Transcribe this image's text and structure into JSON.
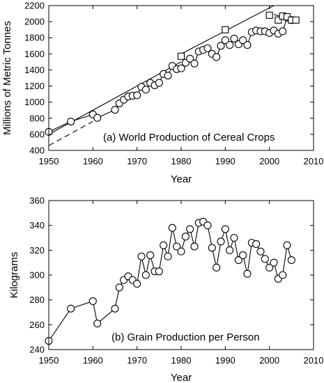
{
  "chart_data": [
    {
      "type": "line",
      "annotation": "(a) World Production of Cereal Crops",
      "xlabel": "Year",
      "ylabel": "Millions of Metric Tonnes",
      "xlim": [
        1950,
        2010
      ],
      "ylim": [
        400,
        2200
      ],
      "xticks": [
        1950,
        1960,
        1970,
        1980,
        1990,
        2000,
        2010
      ],
      "yticks": [
        400,
        600,
        800,
        1000,
        1200,
        1400,
        1600,
        1800,
        2000,
        2200
      ],
      "grid": false,
      "legend": "none",
      "series": [
        {
          "marker": "circle",
          "x": [
            1950,
            1955,
            1960,
            1961,
            1965,
            1966,
            1967,
            1968,
            1969,
            1970,
            1971,
            1972,
            1973,
            1974,
            1975,
            1976,
            1977,
            1978,
            1979,
            1980,
            1981,
            1982,
            1983,
            1984,
            1985,
            1986,
            1987,
            1988,
            1989,
            1990,
            1991,
            1992,
            1993,
            1994,
            1995,
            1996,
            1997,
            1998,
            1999,
            2000,
            2001,
            2002,
            2003,
            2004,
            2005
          ],
          "y": [
            631,
            759,
            847,
            805,
            905,
            985,
            1030,
            1070,
            1080,
            1085,
            1190,
            1155,
            1240,
            1210,
            1240,
            1350,
            1330,
            1450,
            1410,
            1420,
            1490,
            1540,
            1480,
            1630,
            1650,
            1670,
            1600,
            1560,
            1700,
            1770,
            1710,
            1790,
            1720,
            1770,
            1710,
            1870,
            1890,
            1880,
            1880,
            1860,
            1890,
            1850,
            1880,
            2050,
            2020
          ]
        },
        {
          "marker": "square",
          "x": [
            1980,
            1990,
            2000,
            2002,
            2003,
            2004,
            2005,
            2006
          ],
          "y": [
            1570,
            1900,
            2080,
            2020,
            2070,
            2060,
            2020,
            2020
          ]
        }
      ],
      "trend_lines": [
        {
          "style": "solid",
          "x": [
            1950,
            1980
          ],
          "y": [
            600,
            1500
          ]
        },
        {
          "style": "dashed",
          "x": [
            1950,
            1960
          ],
          "y": [
            460,
            760
          ]
        },
        {
          "style": "solid",
          "x": [
            1980,
            2001
          ],
          "y": [
            1600,
            2200
          ]
        },
        {
          "style": "solid",
          "x": [
            2001,
            2006
          ],
          "y": [
            2090,
            2010
          ]
        }
      ]
    },
    {
      "type": "line",
      "annotation": "(b) Grain Production per Person",
      "xlabel": "Year",
      "ylabel": "Kilograms",
      "xlim": [
        1950,
        2010
      ],
      "ylim": [
        240,
        360
      ],
      "xticks": [
        1950,
        1960,
        1970,
        1980,
        1990,
        2000,
        2010
      ],
      "yticks": [
        240,
        260,
        280,
        300,
        320,
        340,
        360
      ],
      "grid": false,
      "legend": "none",
      "series": [
        {
          "marker": "circle",
          "x": [
            1950,
            1955,
            1960,
            1961,
            1965,
            1966,
            1967,
            1968,
            1969,
            1970,
            1971,
            1972,
            1973,
            1974,
            1975,
            1976,
            1977,
            1978,
            1979,
            1980,
            1981,
            1982,
            1983,
            1984,
            1985,
            1986,
            1987,
            1988,
            1989,
            1990,
            1991,
            1992,
            1993,
            1994,
            1995,
            1996,
            1997,
            1998,
            1999,
            2000,
            2001,
            2002,
            2003,
            2004,
            2005
          ],
          "y": [
            247,
            273,
            279,
            261,
            273,
            290,
            296,
            299,
            296,
            293,
            315,
            300,
            316,
            303,
            303,
            324,
            315,
            338,
            323,
            319,
            331,
            337,
            323,
            342,
            343,
            340,
            322,
            306,
            327,
            337,
            320,
            330,
            312,
            316,
            301,
            326,
            325,
            319,
            313,
            306,
            310,
            297,
            300,
            324,
            312
          ]
        }
      ]
    }
  ]
}
